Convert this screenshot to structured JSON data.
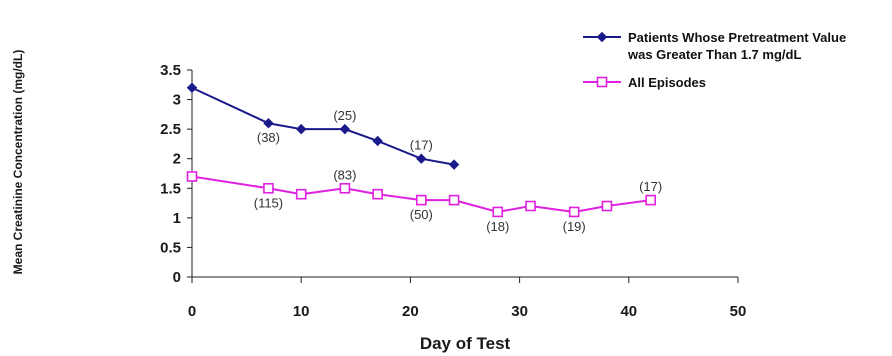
{
  "chart_data": {
    "type": "line",
    "xlabel": "Day of Test",
    "ylabel": "Mean Creatinine Concentration (mg/dL)",
    "xlim": [
      0,
      50
    ],
    "ylim": [
      0,
      3.5
    ],
    "x_ticks": [
      "0",
      "10",
      "20",
      "30",
      "40",
      "50"
    ],
    "y_ticks": [
      "0",
      "0.5",
      "1",
      "1.5",
      "2",
      "2.5",
      "3",
      "3.5"
    ],
    "grid": false,
    "legend_position": "top-right",
    "series": [
      {
        "name_lines": [
          "Patients Whose Pretreatment Value",
          "was Greater Than 1.7 mg/dL"
        ],
        "color": "#1a1a8c",
        "marker": "diamond",
        "x": [
          0,
          7,
          10,
          14,
          17,
          21,
          24
        ],
        "y": [
          3.2,
          2.6,
          2.5,
          2.5,
          2.3,
          2.0,
          1.9
        ]
      },
      {
        "name_lines": [
          "All Episodes"
        ],
        "color": "#e020e0",
        "marker": "square-open",
        "x": [
          0,
          7,
          10,
          14,
          17,
          21,
          24,
          28,
          31,
          35,
          38,
          42
        ],
        "y": [
          1.7,
          1.5,
          1.4,
          1.5,
          1.4,
          1.3,
          1.3,
          1.1,
          1.2,
          1.1,
          1.2,
          1.3
        ]
      }
    ],
    "annotations": [
      {
        "text": "(38)",
        "x": 7,
        "y": 2.6,
        "place": "below"
      },
      {
        "text": "(25)",
        "x": 14,
        "y": 2.5,
        "place": "above"
      },
      {
        "text": "(17)",
        "x": 21,
        "y": 2.0,
        "place": "above"
      },
      {
        "text": "(115)",
        "x": 7,
        "y": 1.5,
        "place": "below"
      },
      {
        "text": "(83)",
        "x": 14,
        "y": 1.5,
        "place": "above"
      },
      {
        "text": "(50)",
        "x": 21,
        "y": 1.3,
        "place": "below"
      },
      {
        "text": "(18)",
        "x": 28,
        "y": 1.1,
        "place": "below"
      },
      {
        "text": "(19)",
        "x": 35,
        "y": 1.1,
        "place": "below"
      },
      {
        "text": "(17)",
        "x": 42,
        "y": 1.3,
        "place": "above"
      }
    ]
  }
}
